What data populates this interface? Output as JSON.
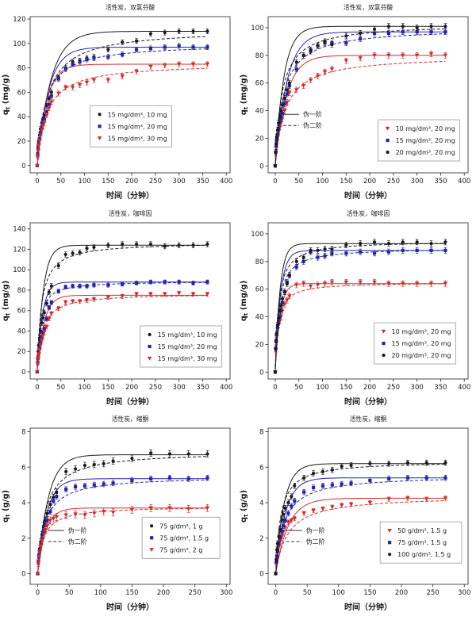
{
  "figure": {
    "background": "#ffffff",
    "model_labels": {
      "pfo": "伪一阶",
      "pso": "伪二阶"
    },
    "colors": {
      "black": "#1a1a1a",
      "blue": "#2424aa",
      "red": "#d52b2b",
      "axis": "#3a3a3a",
      "legend_frame": "#999999"
    }
  },
  "chart_data": [
    {
      "id": "top-left",
      "type": "scatter",
      "title": "活性炭，双氯芬酸",
      "xlabel": "时间（分钟）",
      "ylabel": {
        "base": "q",
        "sub": "t",
        "unit": " (mg/g)"
      },
      "xlim": [
        -15,
        408
      ],
      "ylim": [
        -6,
        122
      ],
      "xticks": [
        0,
        50,
        100,
        150,
        200,
        250,
        300,
        350,
        400
      ],
      "yticks": [
        0,
        20,
        40,
        60,
        80,
        100,
        120
      ],
      "tmax": 360,
      "t": [
        0,
        1,
        2,
        3,
        5,
        7,
        10,
        12,
        15,
        20,
        25,
        30,
        45,
        60,
        75,
        90,
        105,
        120,
        150,
        180,
        210,
        240,
        270,
        300,
        330,
        360
      ],
      "series": [
        {
          "name": "15 mg/dm³, 10 mg",
          "color": "#1a1a1a",
          "marker": "circle",
          "err": 2,
          "y": [
            0,
            10,
            16,
            20,
            25,
            30,
            35,
            38,
            41,
            49,
            55,
            60,
            72,
            80,
            85,
            86,
            88,
            89,
            95,
            101,
            102,
            108,
            109,
            110,
            110,
            110
          ],
          "pfo": {
            "qe": 110,
            "k": 0.035
          },
          "pso": {
            "qe": 112,
            "k": 0.00042
          }
        },
        {
          "name": "15 mg/dm³, 20 mg",
          "color": "#2424aa",
          "marker": "square",
          "err": 2,
          "y": [
            0,
            8,
            14,
            18,
            22,
            27,
            32,
            35,
            38,
            44,
            50,
            57,
            71,
            79,
            83,
            85,
            87,
            88,
            89,
            91,
            95,
            96,
            97,
            98,
            97,
            97
          ],
          "pfo": {
            "qe": 97,
            "k": 0.042
          },
          "pso": {
            "qe": 100,
            "k": 0.0006
          }
        },
        {
          "name": "15 mg/dm³, 30 mg",
          "color": "#d52b2b",
          "marker": "triangle",
          "err": 2,
          "y": [
            0,
            7,
            12,
            16,
            20,
            24,
            29,
            32,
            35,
            41,
            47,
            52,
            59,
            64,
            64,
            66,
            68,
            70,
            70,
            73,
            77,
            81,
            82,
            83,
            83,
            83
          ],
          "pfo": {
            "qe": 83,
            "k": 0.05
          },
          "pso": {
            "qe": 84,
            "k": 0.0006
          }
        }
      ],
      "legend_pos": [
        0.3,
        0.57
      ],
      "line_legend_pos": null
    },
    {
      "id": "top-right",
      "type": "scatter",
      "title": "活性炭，双氯芬酸",
      "xlabel": "时间（分钟）",
      "ylabel": {
        "base": "q",
        "sub": "t",
        "unit": " (mg/g)"
      },
      "xlim": [
        -15,
        408
      ],
      "ylim": [
        -5,
        108
      ],
      "xticks": [
        0,
        50,
        100,
        150,
        200,
        250,
        300,
        350,
        400
      ],
      "yticks": [
        0,
        20,
        40,
        60,
        80,
        100
      ],
      "tmax": 360,
      "t": [
        0,
        1,
        2,
        3,
        5,
        7,
        10,
        12,
        15,
        20,
        25,
        30,
        45,
        60,
        75,
        90,
        105,
        120,
        150,
        180,
        210,
        240,
        270,
        300,
        330,
        360
      ],
      "series": [
        {
          "name": "10 mg/dm³, 20 mg",
          "color": "#d52b2b",
          "marker": "triangle",
          "err": 2,
          "y": [
            0,
            9,
            13,
            17,
            21,
            25,
            28,
            31,
            34,
            40,
            46,
            53,
            55,
            58,
            62,
            65,
            68,
            70,
            76,
            78,
            80,
            80,
            80,
            80,
            81,
            80
          ],
          "pfo": {
            "qe": 80,
            "k": 0.042
          },
          "pso": {
            "qe": 80,
            "k": 0.0006
          }
        },
        {
          "name": "15 mg/dm³, 20 mg",
          "color": "#2424aa",
          "marker": "square",
          "err": 2,
          "y": [
            0,
            10,
            15,
            19,
            23,
            27,
            32,
            35,
            38,
            45,
            52,
            58,
            70,
            80,
            84,
            87,
            89,
            89,
            89,
            92,
            96,
            96,
            97,
            97,
            97,
            97
          ],
          "pfo": {
            "qe": 97,
            "k": 0.04
          },
          "pso": {
            "qe": 100,
            "k": 0.0006
          }
        },
        {
          "name": "20 mg/dm³, 20 mg",
          "color": "#1a1a1a",
          "marker": "circle",
          "err": 2,
          "y": [
            0,
            10,
            16,
            21,
            26,
            31,
            36,
            40,
            44,
            49,
            55,
            60,
            75,
            80,
            83,
            87,
            90,
            88,
            94,
            96,
            99,
            101,
            101,
            100,
            101,
            101
          ],
          "pfo": {
            "qe": 101,
            "k": 0.055
          },
          "pso": {
            "qe": 103,
            "k": 0.0007
          }
        }
      ],
      "legend_pos": [
        0.55,
        0.66
      ],
      "line_legend_pos": [
        0.075,
        0.6
      ]
    },
    {
      "id": "middle-left",
      "type": "scatter",
      "title": "活性炭，咖啡因",
      "xlabel": "时间（分钟）",
      "ylabel": {
        "base": "q",
        "sub": "t",
        "unit": " (mg/g)"
      },
      "xlim": [
        -15,
        408
      ],
      "ylim": [
        -7,
        146
      ],
      "xticks": [
        0,
        50,
        100,
        150,
        200,
        250,
        300,
        350,
        400
      ],
      "yticks": [
        0,
        20,
        40,
        60,
        80,
        100,
        120,
        140
      ],
      "tmax": 360,
      "t": [
        0,
        1,
        2,
        3,
        5,
        7,
        10,
        12,
        15,
        20,
        25,
        30,
        45,
        60,
        75,
        90,
        105,
        120,
        150,
        180,
        210,
        240,
        270,
        300,
        330,
        360
      ],
      "series": [
        {
          "name": "15 mg/dm³, 10 mg",
          "color": "#1a1a1a",
          "marker": "circle",
          "err": 2.5,
          "y": [
            0,
            13,
            20,
            26,
            33,
            40,
            48,
            53,
            58,
            67,
            78,
            84,
            104,
            115,
            116,
            117,
            121,
            122,
            124,
            125,
            125,
            125,
            123,
            124,
            124,
            125
          ],
          "pfo": {
            "qe": 124,
            "k": 0.08
          },
          "pso": {
            "qe": 127,
            "k": 0.0009
          }
        },
        {
          "name": "15 mg/dm³, 20 mg",
          "color": "#2424aa",
          "marker": "square",
          "err": 2,
          "y": [
            0,
            9,
            14,
            18,
            23,
            28,
            34,
            38,
            42,
            52,
            63,
            68,
            79,
            83,
            84,
            84,
            84,
            85,
            85,
            86,
            87,
            88,
            88,
            88,
            87,
            88
          ],
          "pfo": {
            "qe": 88,
            "k": 0.09
          },
          "pso": {
            "qe": 89,
            "k": 0.002
          }
        },
        {
          "name": "15 mg/dm³, 30 mg",
          "color": "#d52b2b",
          "marker": "triangle",
          "err": 2,
          "y": [
            0,
            8,
            13,
            17,
            21,
            26,
            31,
            35,
            39,
            44,
            52,
            57,
            62,
            68,
            69,
            69,
            70,
            71,
            73,
            74,
            76,
            76,
            76,
            77,
            76,
            76
          ],
          "pfo": {
            "qe": 75,
            "k": 0.07
          },
          "pso": {
            "qe": 77,
            "k": 0.0012
          }
        }
      ],
      "legend_pos": [
        0.55,
        0.66
      ],
      "line_legend_pos": null
    },
    {
      "id": "middle-right",
      "type": "scatter",
      "title": "活性炭，咖啡因",
      "xlabel": "时间（分钟）",
      "ylabel": {
        "base": "q",
        "sub": "t",
        "unit": " (mg/g)"
      },
      "xlim": [
        -15,
        408
      ],
      "ylim": [
        -5,
        108
      ],
      "xticks": [
        0,
        50,
        100,
        150,
        200,
        250,
        300,
        350,
        400
      ],
      "yticks": [
        0,
        20,
        40,
        60,
        80,
        100
      ],
      "tmax": 360,
      "t": [
        0,
        1,
        2,
        3,
        5,
        7,
        10,
        12,
        15,
        20,
        25,
        30,
        45,
        60,
        75,
        90,
        105,
        120,
        150,
        180,
        210,
        240,
        270,
        300,
        330,
        360
      ],
      "series": [
        {
          "name": "10 mg/dm³, 20 mg",
          "color": "#d52b2b",
          "marker": "triangle",
          "err": 2,
          "y": [
            0,
            16,
            21,
            26,
            31,
            34,
            37,
            40,
            44,
            49,
            52,
            55,
            63,
            64,
            62,
            63,
            64,
            65,
            65,
            65,
            65,
            64,
            64,
            64,
            64,
            64
          ],
          "pfo": {
            "qe": 64,
            "k": 0.1
          },
          "pso": {
            "qe": 65,
            "k": 0.0025
          }
        },
        {
          "name": "15 mg/dm³, 20 mg",
          "color": "#2424aa",
          "marker": "square",
          "err": 2,
          "y": [
            0,
            17,
            22,
            27,
            32,
            36,
            40,
            45,
            50,
            58,
            65,
            70,
            76,
            80,
            87,
            83,
            84,
            86,
            86,
            87,
            86,
            87,
            88,
            88,
            88,
            88
          ],
          "pfo": {
            "qe": 88,
            "k": 0.09
          },
          "pso": {
            "qe": 90,
            "k": 0.0015
          }
        },
        {
          "name": "20 mg/dm³, 20 mg",
          "color": "#1a1a1a",
          "marker": "circle",
          "err": 2,
          "y": [
            0,
            17,
            23,
            28,
            34,
            39,
            44,
            48,
            53,
            58,
            64,
            70,
            80,
            83,
            88,
            88,
            89,
            89,
            92,
            93,
            94,
            93,
            94,
            94,
            93,
            94
          ],
          "pfo": {
            "qe": 93,
            "k": 0.1
          },
          "pso": {
            "qe": 95,
            "k": 0.0015
          }
        }
      ],
      "legend_pos": [
        0.53,
        0.64
      ],
      "line_legend_pos": null
    },
    {
      "id": "bottom-left",
      "type": "scatter",
      "title": "活性炭，缩酮",
      "xlabel": "时间（分钟）",
      "ylabel": {
        "base": "q",
        "sub": "t",
        "unit": " (g/g)"
      },
      "xlim": [
        -12,
        306
      ],
      "ylim": [
        -0.6,
        8.2
      ],
      "xticks": [
        0,
        50,
        100,
        150,
        200,
        250,
        300
      ],
      "yticks": [
        0,
        2,
        4,
        6,
        8
      ],
      "tmax": 270,
      "t": [
        0,
        1,
        2,
        3,
        5,
        7,
        10,
        12,
        15,
        20,
        25,
        30,
        45,
        60,
        75,
        90,
        105,
        120,
        150,
        180,
        210,
        240,
        270
      ],
      "series": [
        {
          "name": "75 g/dm³, 1 g",
          "color": "#1a1a1a",
          "marker": "circle",
          "err": 0.18,
          "y": [
            0,
            0.7,
            1.1,
            1.4,
            1.8,
            2.2,
            2.7,
            3.0,
            3.4,
            3.9,
            4.3,
            4.6,
            5.75,
            5.9,
            6.1,
            6.15,
            6.2,
            6.35,
            6.5,
            6.8,
            6.75,
            6.75,
            6.75
          ],
          "pfo": {
            "qe": 6.7,
            "k": 0.06
          },
          "pso": {
            "qe": 6.9,
            "k": 0.012
          }
        },
        {
          "name": "75 g/dm³, 1.5 g",
          "color": "#2424aa",
          "marker": "square",
          "err": 0.15,
          "y": [
            0,
            0.65,
            1.0,
            1.3,
            1.7,
            2.0,
            2.4,
            2.7,
            3.0,
            3.5,
            4.1,
            4.35,
            4.75,
            4.9,
            4.95,
            5.0,
            5.05,
            5.1,
            5.25,
            5.35,
            5.4,
            5.35,
            5.4
          ],
          "pfo": {
            "qe": 5.35,
            "k": 0.07
          },
          "pso": {
            "qe": 5.5,
            "k": 0.016
          }
        },
        {
          "name": "75 g/dm³, 2 g",
          "color": "#d52b2b",
          "marker": "triangle",
          "err": 0.2,
          "y": [
            0,
            0.6,
            0.95,
            1.2,
            1.55,
            1.85,
            2.2,
            2.45,
            2.7,
            3.0,
            3.1,
            3.2,
            3.3,
            3.35,
            3.3,
            3.4,
            3.5,
            3.45,
            3.6,
            3.7,
            3.7,
            3.65,
            3.7
          ],
          "pfo": {
            "qe": 3.7,
            "k": 0.08
          },
          "pso": {
            "qe": 3.8,
            "k": 0.03
          }
        }
      ],
      "legend_pos": [
        0.56,
        0.57
      ],
      "line_legend_pos": [
        0.09,
        0.63
      ]
    },
    {
      "id": "bottom-right",
      "type": "scatter",
      "title": "活性炭，缩酮",
      "xlabel": "时间（分钟）",
      "ylabel": {
        "base": "q",
        "sub": "t",
        "unit": " (g/g)"
      },
      "xlim": [
        -12,
        306
      ],
      "ylim": [
        -0.6,
        8.2
      ],
      "xticks": [
        0,
        50,
        100,
        150,
        200,
        250,
        300
      ],
      "yticks": [
        0,
        2,
        4,
        6,
        8
      ],
      "tmax": 270,
      "t": [
        0,
        1,
        2,
        3,
        5,
        7,
        10,
        12,
        15,
        20,
        25,
        30,
        45,
        60,
        75,
        90,
        105,
        120,
        150,
        180,
        210,
        240,
        270
      ],
      "series": [
        {
          "name": "50 g/dm³, 1.5 g",
          "color": "#d52b2b",
          "marker": "triangle",
          "err": 0.12,
          "y": [
            0,
            0.55,
            0.9,
            1.15,
            1.5,
            1.8,
            2.1,
            2.35,
            2.6,
            2.9,
            3.0,
            3.1,
            3.4,
            3.55,
            3.65,
            3.75,
            3.85,
            3.9,
            4.0,
            4.2,
            4.25,
            4.2,
            4.25
          ],
          "pfo": {
            "qe": 4.25,
            "k": 0.05
          },
          "pso": {
            "qe": 4.4,
            "k": 0.012
          }
        },
        {
          "name": "75 g/dm³, 1.5 g",
          "color": "#2424aa",
          "marker": "square",
          "err": 0.15,
          "y": [
            0,
            0.65,
            1.0,
            1.3,
            1.7,
            2.0,
            2.4,
            2.7,
            3.0,
            3.4,
            3.8,
            4.1,
            4.6,
            4.85,
            4.95,
            5.0,
            5.05,
            5.1,
            5.25,
            5.35,
            5.4,
            5.4,
            5.4
          ],
          "pfo": {
            "qe": 5.4,
            "k": 0.065
          },
          "pso": {
            "qe": 5.55,
            "k": 0.014
          }
        },
        {
          "name": "100 g/dm³, 1.5 g",
          "color": "#1a1a1a",
          "marker": "circle",
          "err": 0.15,
          "y": [
            0,
            0.8,
            1.35,
            1.7,
            2.1,
            2.5,
            3.05,
            3.35,
            3.7,
            4.0,
            4.35,
            4.95,
            5.4,
            5.65,
            5.75,
            5.85,
            6.05,
            6.1,
            6.2,
            6.2,
            6.25,
            6.25,
            6.25
          ],
          "pfo": {
            "qe": 6.2,
            "k": 0.075
          },
          "pso": {
            "qe": 6.35,
            "k": 0.02
          }
        }
      ],
      "legend_pos": [
        0.56,
        0.6
      ],
      "line_legend_pos": [
        0.09,
        0.63
      ]
    }
  ]
}
